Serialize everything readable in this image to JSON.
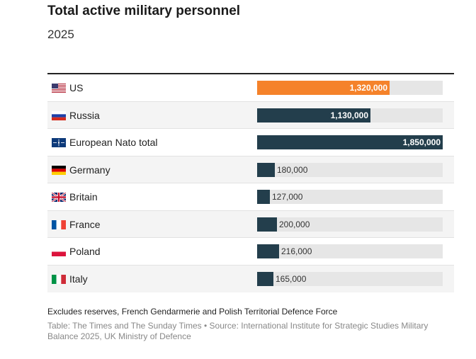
{
  "header": {
    "title": "Total active military personnel",
    "subtitle": "2025"
  },
  "chart_data": {
    "type": "bar",
    "orientation": "horizontal",
    "title": "Total active military personnel",
    "subtitle": "2025",
    "xlim": [
      0,
      1850000
    ],
    "categories": [
      "US",
      "Russia",
      "European Nato total",
      "Germany",
      "Britain",
      "France",
      "Poland",
      "Italy"
    ],
    "values": [
      1320000,
      1130000,
      1850000,
      180000,
      127000,
      200000,
      216000,
      165000
    ],
    "labels": [
      "1,320,000",
      "1,130,000",
      "1,850,000",
      "180,000",
      "127,000",
      "200,000",
      "216,000",
      "165,000"
    ],
    "flags": [
      "us-flag-icon",
      "russia-flag-icon",
      "nato-flag-icon",
      "germany-flag-icon",
      "britain-flag-icon",
      "france-flag-icon",
      "poland-flag-icon",
      "italy-flag-icon"
    ],
    "colors": {
      "highlight": "#f5822a",
      "bar": "#233e4c",
      "track": "#e6e6e6"
    },
    "highlight_index": 0
  },
  "footer": {
    "note": "Excludes reserves, French Gendarmerie and Polish Territorial Defence Force",
    "source": "Table: The Times and The Sunday Times • Source: International Institute for Strategic Studies Military Balance 2025, UK Ministry of Defence"
  }
}
